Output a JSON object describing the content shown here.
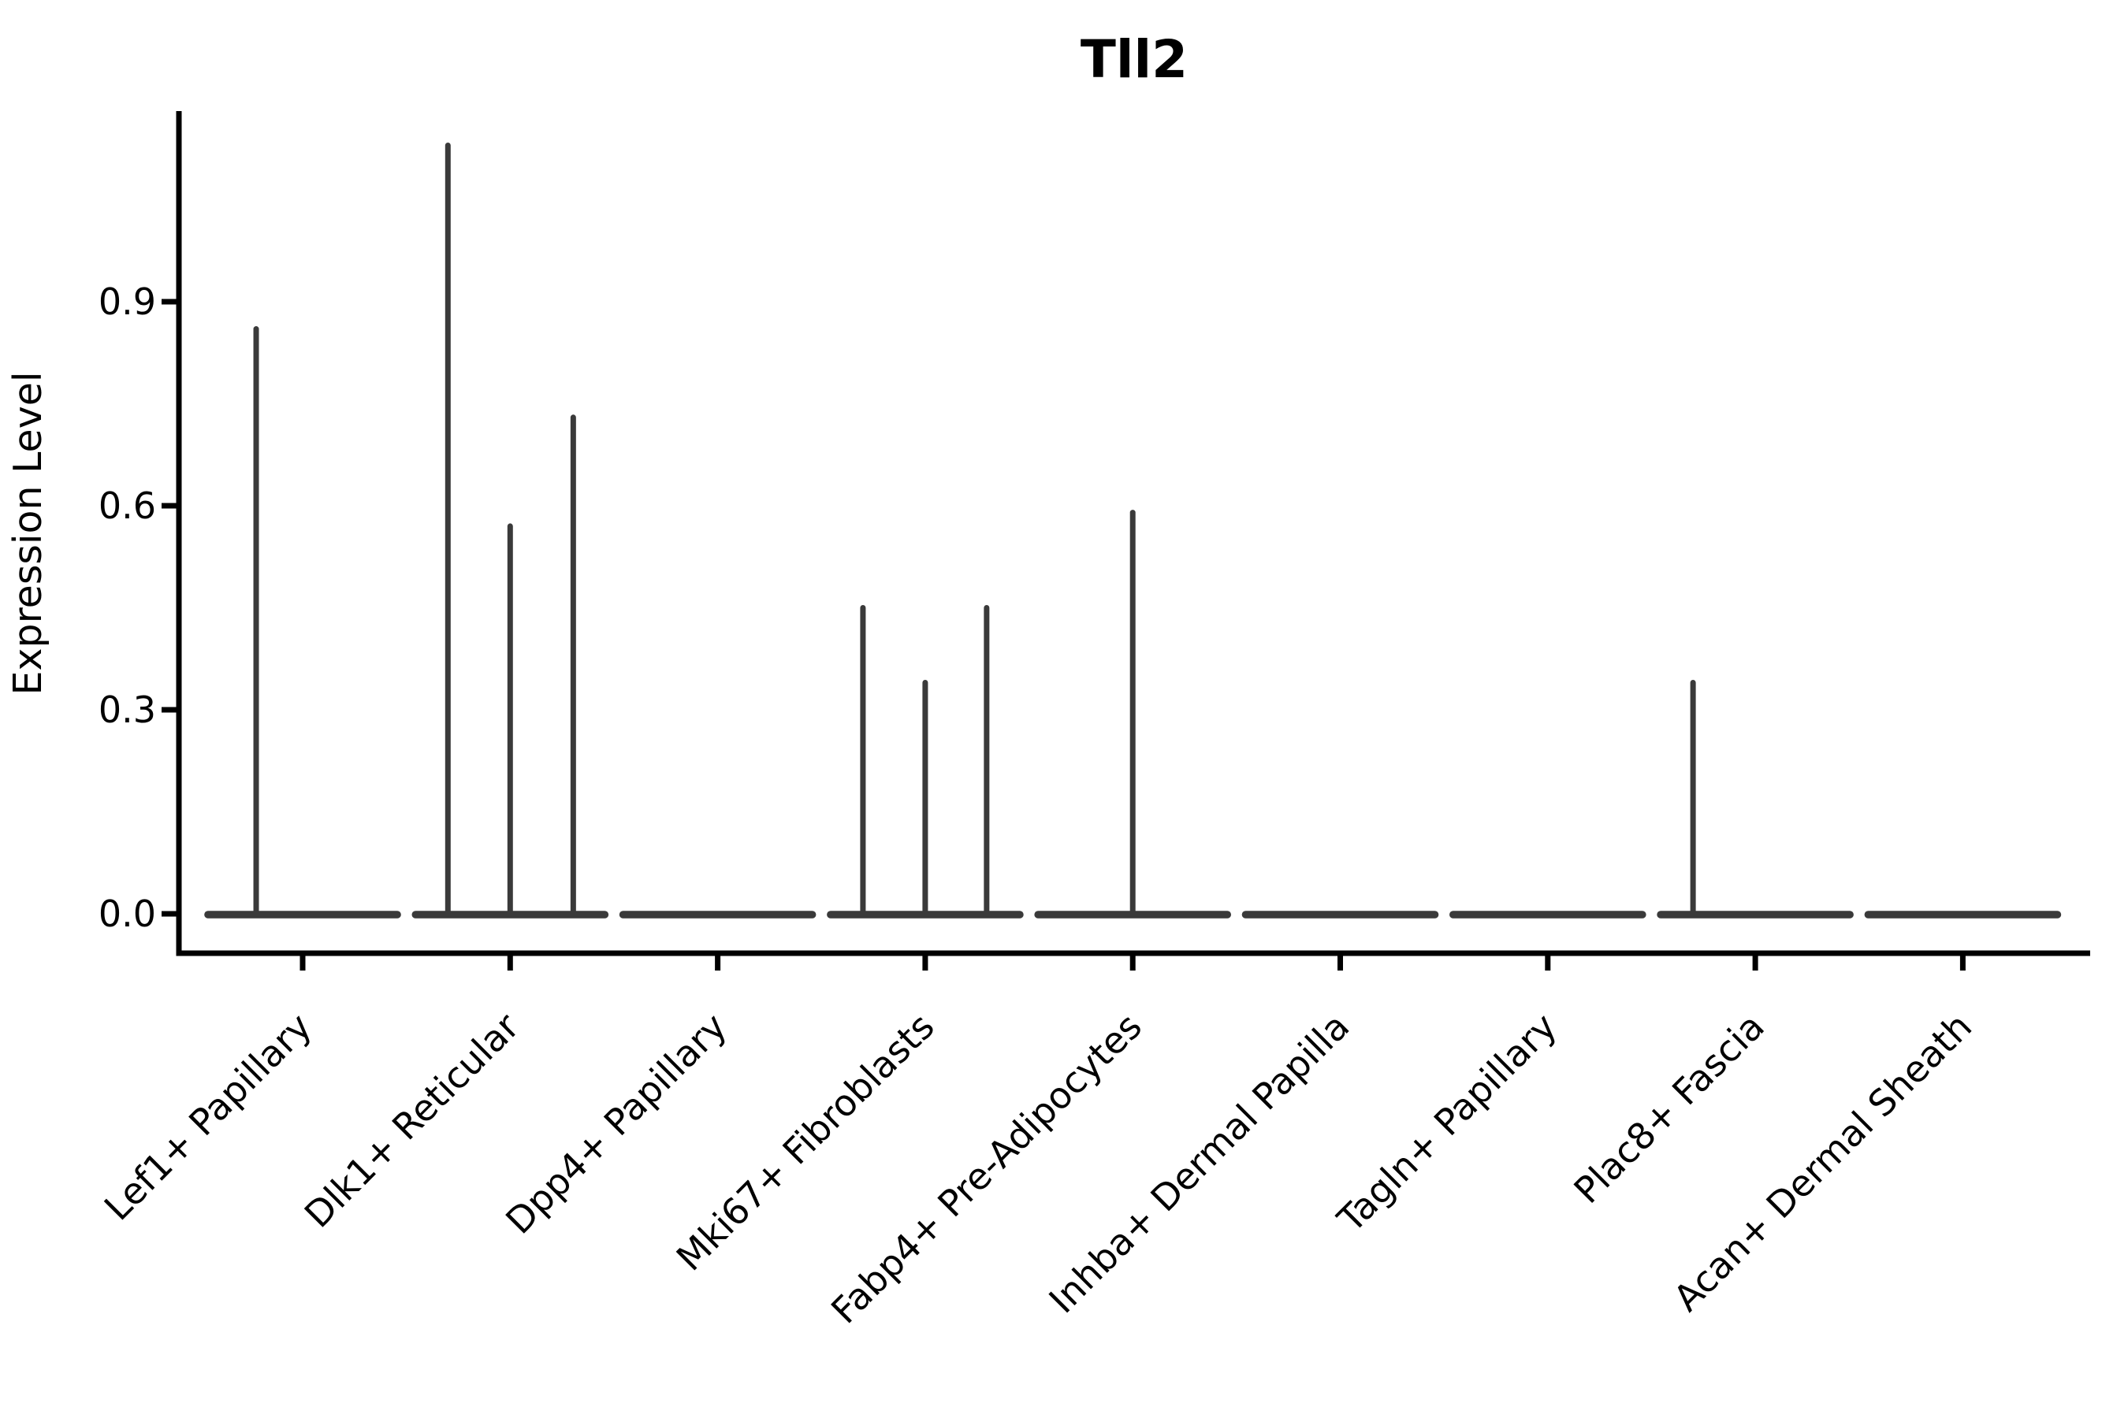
{
  "chart_data": {
    "type": "violin",
    "title": "Tll2",
    "ylabel": "Expression Level",
    "xlabel": "",
    "grid": false,
    "legend": "none",
    "yticks": [
      "0.0",
      "0.3",
      "0.6",
      "0.9"
    ],
    "ytick_values": [
      0.0,
      0.3,
      0.6,
      0.9
    ],
    "ylim": [
      -0.06,
      1.18
    ],
    "categories": [
      "Lef1+ Papillary",
      "Dlk1+ Reticular",
      "Dpp4+ Papillary",
      "Mki67+ Fibroblasts",
      "Fabp4+ Pre-Adipocytes",
      "Inhba+ Dermal Papilla",
      "Tagln+ Papillary",
      "Plac8+ Fascia",
      "Acan+ Dermal Sheath"
    ],
    "body_halfwidth_frac": 0.456,
    "violins": [
      {
        "category": "Lef1+ Papillary",
        "body_value": 0,
        "spikes": [
          {
            "offset_frac": -0.224,
            "peak": 0.86
          }
        ]
      },
      {
        "category": "Dlk1+ Reticular",
        "body_value": 0,
        "spikes": [
          {
            "offset_frac": -0.3,
            "peak": 1.13
          },
          {
            "offset_frac": 0.0,
            "peak": 0.57
          },
          {
            "offset_frac": 0.304,
            "peak": 0.73
          }
        ]
      },
      {
        "category": "Dpp4+ Papillary",
        "body_value": 0,
        "spikes": []
      },
      {
        "category": "Mki67+ Fibroblasts",
        "body_value": 0,
        "spikes": [
          {
            "offset_frac": -0.3,
            "peak": 0.45
          },
          {
            "offset_frac": 0.0,
            "peak": 0.34
          },
          {
            "offset_frac": 0.296,
            "peak": 0.45
          }
        ]
      },
      {
        "category": "Fabp4+ Pre-Adipocytes",
        "body_value": 0,
        "spikes": [
          {
            "offset_frac": 0.0,
            "peak": 0.59
          }
        ]
      },
      {
        "category": "Inhba+ Dermal Papilla",
        "body_value": 0,
        "spikes": []
      },
      {
        "category": "Tagln+ Papillary",
        "body_value": 0,
        "spikes": []
      },
      {
        "category": "Plac8+ Fascia",
        "body_value": 0,
        "spikes": [
          {
            "offset_frac": -0.3,
            "peak": 0.34
          }
        ]
      },
      {
        "category": "Acan+ Dermal Sheath",
        "body_value": 0,
        "spikes": []
      }
    ],
    "colors": {
      "background": "#ffffff",
      "axis": "#000000",
      "text": "#000000",
      "violin": "#3a3a3a"
    }
  }
}
